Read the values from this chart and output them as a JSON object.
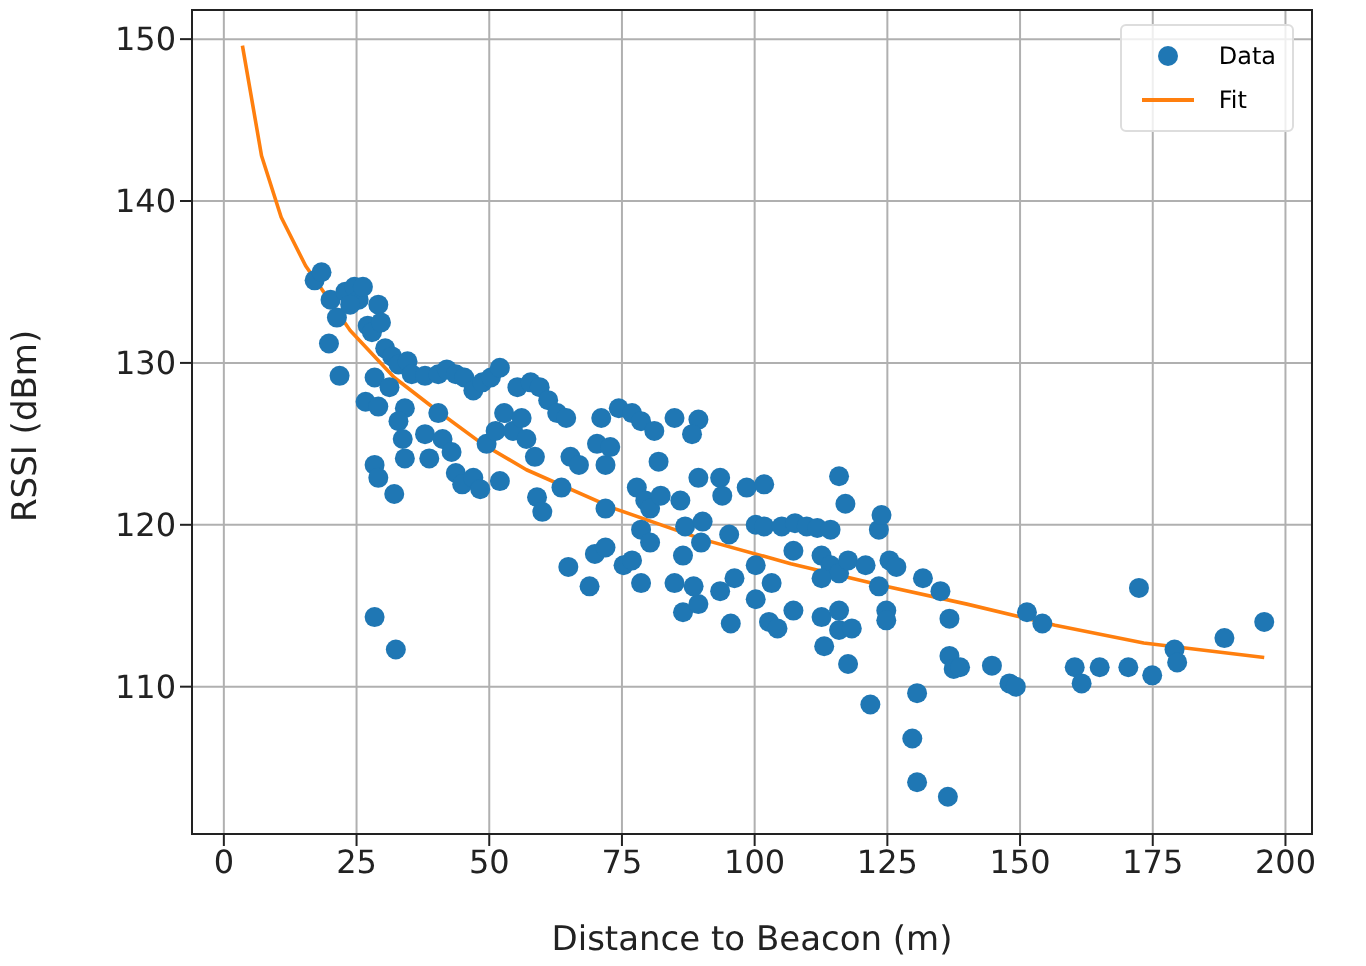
{
  "chart_data": {
    "type": "scatter",
    "xlabel": "Distance to Beacon (m)",
    "ylabel": "RSSI (dBm)",
    "xlim": [
      -6,
      205
    ],
    "ylim": [
      100.9,
      151.8
    ],
    "xticks": [
      0,
      25,
      50,
      75,
      100,
      125,
      150,
      175,
      200
    ],
    "yticks": [
      110,
      120,
      130,
      140,
      150
    ],
    "grid": true,
    "legend": "top right",
    "series": [
      {
        "name": "Data",
        "marker": "circle",
        "color": "#1f77b4",
        "x": [
          17.1,
          18.4,
          20.1,
          19.8,
          21.3,
          21.8,
          22.9,
          24.6,
          25.4,
          23.8,
          26.2,
          27.1,
          26.7,
          27.9,
          29.1,
          29.6,
          28.4,
          29.1,
          28.4,
          29.1,
          32.1,
          28.4,
          32.4,
          30.4,
          31.7,
          32.9,
          34.6,
          34.1,
          32.9,
          33.7,
          34.1,
          31.2,
          35.4,
          37.9,
          40.4,
          42.0,
          43.7,
          45.3,
          47.0,
          48.7,
          50.3,
          52.0,
          37.9,
          38.7,
          40.4,
          41.2,
          42.9,
          43.7,
          44.9,
          47.0,
          48.3,
          52.0,
          49.5,
          51.2,
          52.8,
          54.5,
          56.1,
          55.3,
          57.8,
          59.5,
          61.1,
          62.8,
          64.5,
          57.0,
          58.6,
          59.0,
          60.0,
          63.6,
          64.9,
          65.3,
          66.9,
          68.9,
          70.3,
          71.1,
          71.9,
          72.8,
          71.9,
          69.9,
          71.9,
          74.4,
          76.9,
          78.6,
          77.8,
          79.4,
          81.1,
          81.9,
          75.3,
          76.9,
          78.6,
          78.6,
          80.3,
          80.3,
          82.3,
          84.9,
          89.4,
          88.2,
          86.0,
          86.9,
          86.5,
          89.4,
          90.2,
          89.9,
          84.9,
          86.5,
          89.4,
          88.5,
          93.5,
          93.9,
          95.2,
          96.2,
          93.5,
          95.5,
          98.5,
          101.8,
          100.2,
          101.8,
          100.2,
          103.2,
          100.2,
          102.7,
          104.3,
          105.1,
          107.6,
          109.8,
          111.8,
          114.3,
          107.3,
          112.6,
          114.3,
          115.9,
          117.6,
          112.6,
          107.3,
          112.6,
          115.9,
          113.1,
          115.9,
          118.3,
          117.6,
          115.9,
          117.1,
          121.8,
          120.9,
          123.4,
          123.9,
          123.4,
          124.8,
          124.8,
          125.4,
          126.7,
          131.7,
          135.0,
          136.7,
          130.6,
          129.7,
          130.6,
          136.4,
          136.7,
          137.5,
          138.7,
          144.7,
          148.0,
          149.2,
          151.3,
          154.2,
          160.3,
          161.6,
          165.0,
          170.4,
          172.4,
          174.9,
          179.1,
          179.6,
          188.5,
          196.0
        ],
        "values": [
          135.1,
          135.6,
          133.9,
          131.2,
          132.8,
          129.2,
          134.4,
          134.7,
          133.9,
          133.6,
          134.7,
          132.3,
          127.6,
          131.9,
          133.6,
          132.5,
          129.1,
          127.3,
          123.7,
          122.9,
          121.9,
          114.3,
          112.3,
          130.9,
          130.4,
          129.9,
          130.1,
          127.2,
          126.4,
          125.3,
          124.1,
          128.5,
          129.3,
          129.2,
          129.3,
          129.6,
          129.3,
          129.1,
          128.3,
          128.8,
          129.1,
          129.7,
          125.6,
          124.1,
          126.9,
          125.3,
          124.5,
          123.2,
          122.5,
          122.9,
          122.2,
          122.7,
          125.0,
          125.8,
          126.9,
          125.8,
          126.6,
          128.5,
          128.8,
          128.5,
          127.7,
          126.9,
          126.6,
          125.3,
          124.2,
          121.7,
          120.8,
          122.3,
          117.4,
          124.2,
          123.7,
          116.2,
          125.0,
          126.6,
          123.7,
          124.8,
          121.0,
          118.2,
          118.6,
          127.2,
          126.9,
          126.4,
          122.3,
          121.5,
          125.8,
          123.9,
          117.5,
          117.8,
          116.4,
          119.7,
          118.9,
          121.0,
          121.8,
          126.6,
          126.5,
          125.6,
          121.5,
          119.9,
          118.1,
          122.9,
          120.2,
          118.9,
          116.4,
          114.6,
          115.1,
          116.2,
          122.9,
          121.8,
          119.4,
          116.7,
          115.9,
          113.9,
          122.3,
          122.5,
          120.0,
          119.9,
          117.5,
          116.4,
          115.4,
          114.0,
          113.6,
          119.9,
          120.1,
          119.9,
          119.8,
          119.7,
          118.4,
          118.1,
          117.5,
          117.0,
          117.8,
          116.7,
          114.7,
          114.3,
          114.7,
          112.5,
          113.5,
          113.6,
          111.4,
          123.0,
          121.3,
          108.9,
          117.5,
          119.7,
          120.6,
          116.2,
          114.7,
          114.1,
          117.8,
          117.4,
          116.7,
          115.9,
          114.2,
          109.6,
          106.8,
          104.1,
          103.2,
          111.9,
          111.1,
          111.2,
          111.3,
          110.2,
          110.0,
          114.6,
          113.9,
          111.2,
          110.2,
          111.2,
          111.2,
          116.1,
          110.7,
          112.3,
          111.5,
          113.0,
          114.0
        ]
      },
      {
        "name": "Fit",
        "type": "line",
        "marker": "none",
        "line_style": "solid",
        "color": "#ff7f0e",
        "x": [
          3.5,
          7.1,
          10.8,
          15.4,
          23.8,
          32.1,
          40.4,
          48.7,
          57.0,
          73.6,
          90.2,
          106.8,
          123.4,
          140.0,
          156.6,
          173.3,
          196.0
        ],
        "values": [
          149.6,
          142.8,
          139.0,
          136.0,
          132.0,
          129.1,
          127.0,
          125.0,
          123.4,
          121.0,
          119.1,
          117.6,
          116.3,
          115.1,
          113.8,
          112.7,
          111.8
        ]
      }
    ]
  }
}
